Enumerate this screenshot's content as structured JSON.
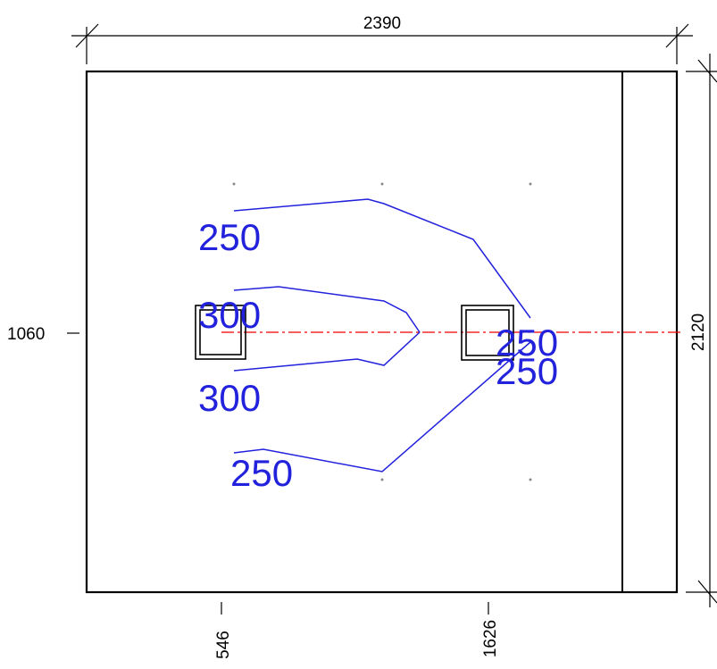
{
  "dimensions": {
    "width": "2390",
    "height": "2120",
    "y_mark": "1060",
    "x_mark_1": "546",
    "x_mark_2": "1626"
  },
  "contour_labels": [
    "250",
    "300",
    "300",
    "250",
    "250",
    "250"
  ],
  "colors": {
    "outline": "#000000",
    "contour": "#2222dd",
    "axis_line": "#ee0000"
  }
}
